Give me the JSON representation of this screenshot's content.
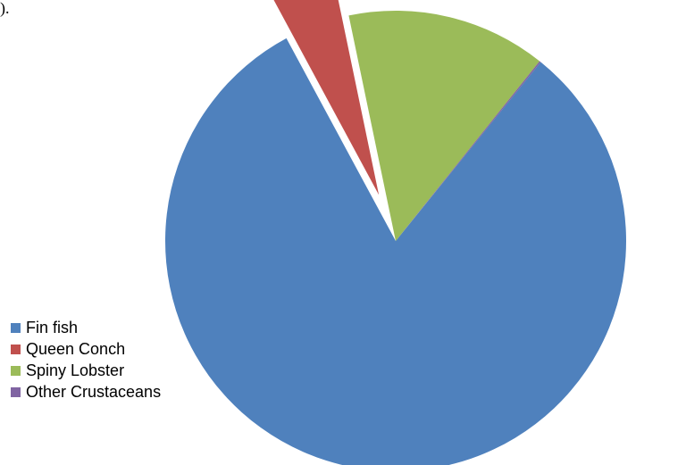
{
  "leading_text": ").",
  "chart_data": {
    "type": "pie",
    "legend_position": "left",
    "exploded": [
      "Queen Conch"
    ],
    "slices": [
      {
        "label": "Fin fish",
        "value": 81.3,
        "color": "#4F81BD"
      },
      {
        "label": "Queen Conch",
        "value": 4.6,
        "color": "#C0504D"
      },
      {
        "label": "Spiny Lobster",
        "value": 14.0,
        "color": "#9BBB59"
      },
      {
        "label": "Other Crustaceans",
        "value": 0.1,
        "color": "#8064A2"
      }
    ]
  }
}
